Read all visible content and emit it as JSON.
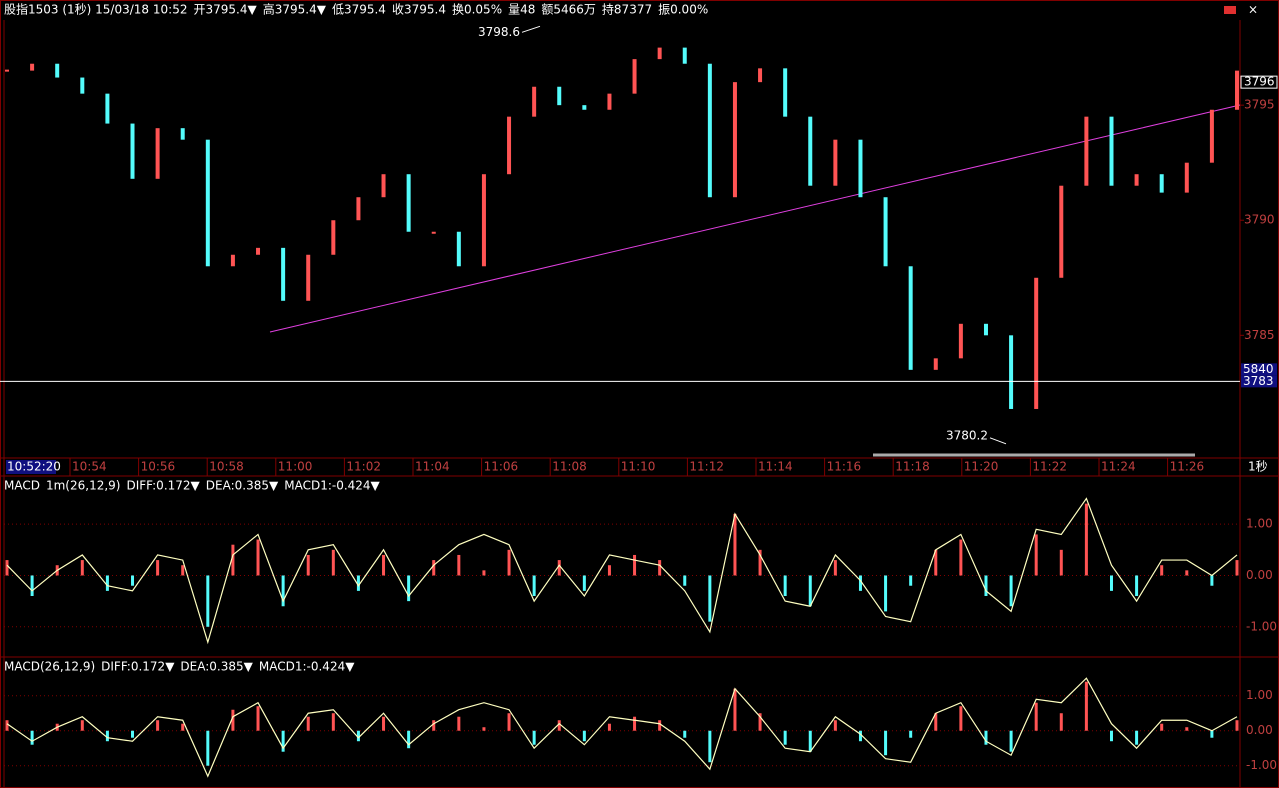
{
  "header": {
    "title": "股指1503 (1秒) 15/03/18 10:52",
    "fields": [
      {
        "label": "开",
        "value": "3795.4▼"
      },
      {
        "label": "高",
        "value": "3795.4▼"
      },
      {
        "label": "低",
        "value": "3795.4"
      },
      {
        "label": "收",
        "value": "3795.4"
      }
    ],
    "stats": [
      "换0.05%",
      "量48",
      "额5466万",
      "持87377",
      "振0.00%"
    ]
  },
  "chart_data": [
    {
      "type": "candlestick",
      "values": [
        3796.5,
        3796.8,
        3796.2,
        3795.5,
        3794.2,
        3791.8,
        3794,
        3793.5,
        3788,
        3788.5,
        3788.8,
        3786.5,
        3788.5,
        3790,
        3791,
        3792,
        3789.5,
        3789.5,
        3788,
        3792,
        3794.5,
        3795.8,
        3795,
        3794.8,
        3795.5,
        3797,
        3797.5,
        3796.8,
        3791,
        3796,
        3796.6,
        3794.5,
        3791.5,
        3793.5,
        3791,
        3788,
        3783.5,
        3784,
        3785.5,
        3785,
        3781.8,
        3787.5,
        3791.5,
        3794.5,
        3791.5,
        3792,
        3791.2,
        3792.5,
        3794.8,
        3796.5
      ],
      "up_color": "#ff5454",
      "down_color": "#54fcfc",
      "ylim": [
        3779.8,
        3798.7
      ],
      "yticks": [
        3785,
        3790,
        3795
      ],
      "high_label": 3798.6,
      "low_label": 3780.2,
      "last_price": 3796,
      "cursor_price": 3783,
      "cursor_volume": 5840,
      "time_labels": [
        "10:52:20",
        "10:54",
        "10:56",
        "10:58",
        "11:00",
        "11:02",
        "11:04",
        "11:06",
        "11:08",
        "11:10",
        "11:12",
        "11:14",
        "11:16",
        "11:18",
        "11:20",
        "11:22",
        "11:24",
        "11:26"
      ],
      "period_label": "1秒"
    },
    {
      "type": "macd",
      "title": "MACD",
      "params": "1m(26,12,9)",
      "diff_label": "DIFF:0.172▼",
      "dea_label": "DEA:0.385▼",
      "macd_label": "MACD1:-0.424▼",
      "ylim": [
        -1.55,
        1.9
      ],
      "yticks": [
        {
          "value": 1,
          "label": "1.00"
        },
        {
          "value": 0,
          "label": "0.00"
        },
        {
          "value": -1,
          "label": "-1.00"
        }
      ],
      "histogram": [
        0.3,
        -0.4,
        0.2,
        0.3,
        -0.3,
        -0.2,
        0.3,
        0.2,
        -1.0,
        0.6,
        0.7,
        -0.6,
        0.4,
        0.5,
        -0.3,
        0.4,
        -0.5,
        0.3,
        0.4,
        0.1,
        0.5,
        -0.4,
        0.3,
        -0.3,
        0.2,
        0.4,
        0.3,
        -0.2,
        -0.9,
        1.2,
        0.5,
        -0.4,
        -0.6,
        0.3,
        -0.3,
        -0.7,
        -0.2,
        0.5,
        0.7,
        -0.4,
        -0.6,
        0.8,
        0.5,
        1.4,
        -0.3,
        -0.4,
        0.2,
        0.1,
        -0.2,
        0.3
      ],
      "diff": [
        0.2,
        -0.3,
        0.1,
        0.4,
        -0.2,
        -0.3,
        0.4,
        0.3,
        -1.3,
        0.4,
        0.8,
        -0.5,
        0.5,
        0.6,
        -0.2,
        0.5,
        -0.4,
        0.2,
        0.6,
        0.8,
        0.6,
        -0.5,
        0.2,
        -0.4,
        0.4,
        0.3,
        0.2,
        -0.3,
        -1.1,
        1.2,
        0.4,
        -0.5,
        -0.6,
        0.4,
        -0.1,
        -0.8,
        -0.9,
        0.5,
        0.8,
        -0.3,
        -0.7,
        0.9,
        0.8,
        1.5,
        0.2,
        -0.5,
        0.3,
        0.3,
        0.0,
        0.4
      ]
    },
    {
      "type": "macd",
      "title": "MACD(26,12,9)",
      "diff_label": "DIFF:0.172▼",
      "dea_label": "DEA:0.385▼",
      "macd_label": "MACD1:-0.424▼",
      "ylim": [
        -1.58,
        2.05
      ],
      "yticks": [
        {
          "value": 1,
          "label": "1.00"
        },
        {
          "value": 0,
          "label": "0.00"
        },
        {
          "value": -1,
          "label": "-1.00"
        }
      ],
      "histogram": [
        0.3,
        -0.4,
        0.2,
        0.3,
        -0.3,
        -0.2,
        0.3,
        0.2,
        -1.0,
        0.6,
        0.7,
        -0.6,
        0.4,
        0.5,
        -0.3,
        0.4,
        -0.5,
        0.3,
        0.4,
        0.1,
        0.5,
        -0.4,
        0.3,
        -0.3,
        0.2,
        0.4,
        0.3,
        -0.2,
        -0.9,
        1.2,
        0.5,
        -0.4,
        -0.6,
        0.3,
        -0.3,
        -0.7,
        -0.2,
        0.5,
        0.7,
        -0.4,
        -0.6,
        0.8,
        0.5,
        1.4,
        -0.3,
        -0.4,
        0.2,
        0.1,
        -0.2,
        0.3
      ],
      "diff": [
        0.2,
        -0.3,
        0.1,
        0.4,
        -0.2,
        -0.3,
        0.4,
        0.3,
        -1.3,
        0.4,
        0.8,
        -0.5,
        0.5,
        0.6,
        -0.2,
        0.5,
        -0.4,
        0.2,
        0.6,
        0.8,
        0.6,
        -0.5,
        0.2,
        -0.4,
        0.4,
        0.3,
        0.2,
        -0.3,
        -1.1,
        1.2,
        0.4,
        -0.5,
        -0.6,
        0.4,
        -0.1,
        -0.8,
        -0.9,
        0.5,
        0.8,
        -0.3,
        -0.7,
        0.9,
        0.8,
        1.5,
        0.2,
        -0.5,
        0.3,
        0.3,
        0.0,
        0.4
      ]
    }
  ]
}
